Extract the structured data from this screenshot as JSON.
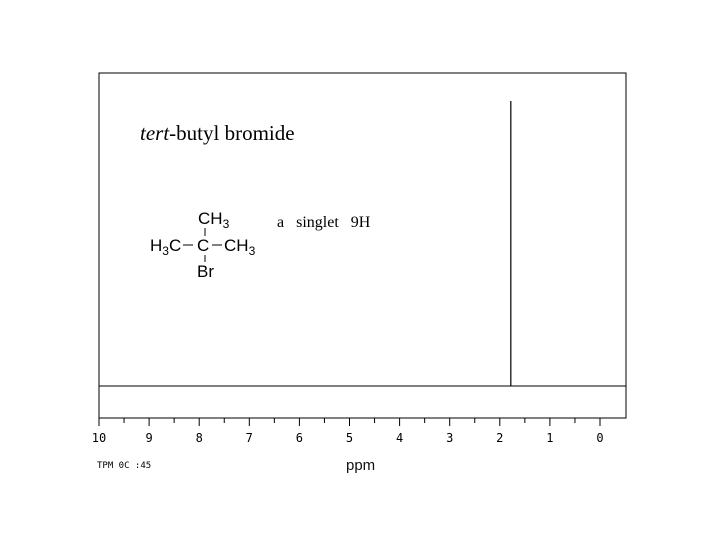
{
  "chart_data": {
    "type": "line",
    "title": "tert-butyl bromide",
    "title_italic_part": "tert",
    "title_rest": "-butyl bromide",
    "xlabel": "ppm",
    "xlim": [
      10,
      0
    ],
    "x_ticks": [
      "10",
      "9",
      "8",
      "7",
      "6",
      "5",
      "4",
      "3",
      "2",
      "1",
      "0"
    ],
    "peaks": [
      {
        "x": 1.78,
        "relative_intensity": 1.0
      }
    ],
    "annotation": "a   singlet   9H",
    "structure": {
      "top": "CH3",
      "left": "H3C",
      "center": "C",
      "right": "CH3",
      "bottom": "Br"
    },
    "footer_code": "TPM 0C :45",
    "grid": false,
    "line_color": "#000000"
  }
}
